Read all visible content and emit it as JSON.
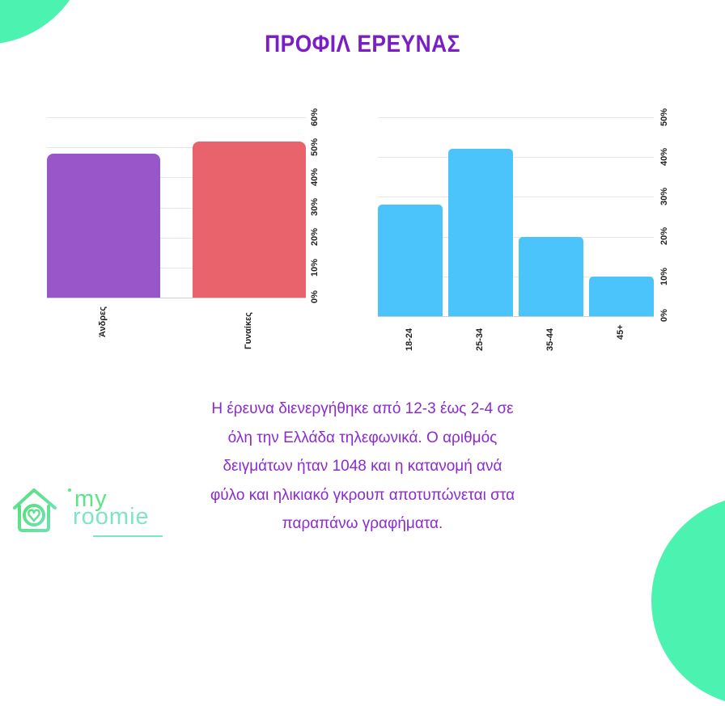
{
  "page": {
    "title": "ΠΡΟΦΙΛ ΕΡΕΥΝΑΣ",
    "description_lines": [
      "Η έρευνα διενεργήθηκε από 12-3 έως 2-4 σε",
      "όλη την Ελλάδα τηλεφωνικά. Ο αριθμός",
      "δειγμάτων ήταν 1048 και η κατανομή ανά",
      "φύλο και ηλικιακό γκρουπ αποτυπώνεται στα",
      "παραπάνω γραφήματα."
    ],
    "logo": {
      "line1": "my",
      "line2": "roomie"
    },
    "colors": {
      "title": "#7a1fc4",
      "description": "#8a2bd0",
      "corner_accent": "#4cf2b0",
      "logo_green": "#5ee38a",
      "logo_teal": "#7fe4c4"
    }
  },
  "chart_data": [
    {
      "type": "bar",
      "title": "",
      "xlabel": "",
      "ylabel": "",
      "categories": [
        "Άνδρες",
        "Γυναίκες"
      ],
      "values": [
        48,
        52
      ],
      "colors": [
        "#9856c9",
        "#e8636b"
      ],
      "yticks": [
        "0%",
        "10%",
        "20%",
        "30%",
        "40%",
        "50%",
        "60%"
      ],
      "ylim": [
        0,
        60
      ],
      "y_axis_position": "right",
      "grid": true,
      "unit": "%"
    },
    {
      "type": "bar",
      "title": "",
      "xlabel": "",
      "ylabel": "",
      "categories": [
        "18-24",
        "25-34",
        "35-44",
        "45+"
      ],
      "values": [
        28,
        42,
        20,
        10
      ],
      "colors": [
        "#4bc3fb",
        "#4bc3fb",
        "#4bc3fb",
        "#4bc3fb"
      ],
      "yticks": [
        "0%",
        "10%",
        "20%",
        "30%",
        "40%",
        "50%"
      ],
      "ylim": [
        0,
        50
      ],
      "y_axis_position": "right",
      "grid": true,
      "unit": "%"
    }
  ]
}
